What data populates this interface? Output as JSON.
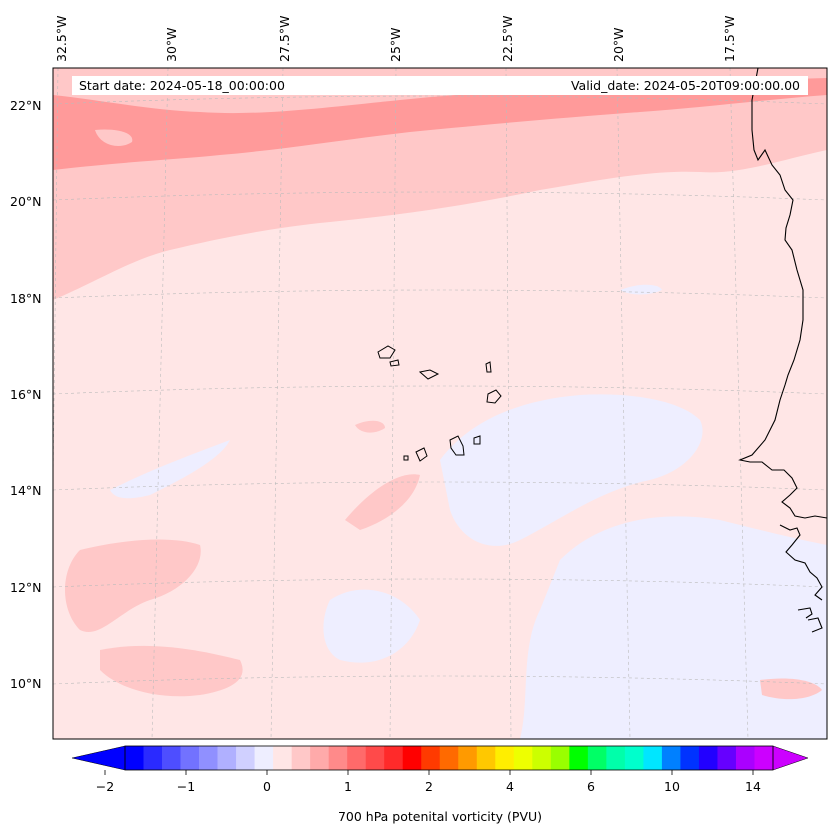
{
  "map": {
    "start_date": "Start date: 2024-05-18_00:00:00",
    "valid_date": "Valid_date: 2024-05-20T09:00:00.00",
    "lon_labels": [
      "32.5°W",
      "30°W",
      "27.5°W",
      "25°W",
      "22.5°W",
      "20°W",
      "17.5°W"
    ],
    "lat_labels": [
      "22°N",
      "20°N",
      "18°N",
      "16°N",
      "14°N",
      "12°N",
      "10°N"
    ],
    "colors": {
      "background_field": "#ffe6e6",
      "light_pink": "#ffc8c8",
      "medium_pink": "#ff9a9a",
      "light_lavender": "#eeeeff",
      "coastline": "#000000"
    }
  },
  "colorbar": {
    "label": "700 hPa potenital vorticity (PVU)",
    "tick_labels": [
      "−2",
      "−1",
      "0",
      "1",
      "2",
      "4",
      "6",
      "10",
      "14"
    ],
    "colors": [
      "#0000ff",
      "#2a2aff",
      "#4e4eff",
      "#7272ff",
      "#9090ff",
      "#b0b0ff",
      "#d0d0ff",
      "#eeeeff",
      "#ffe6e6",
      "#ffc8c8",
      "#ffaaaa",
      "#ff8a8a",
      "#ff6a6a",
      "#ff4a4a",
      "#ff2a2a",
      "#ff0000",
      "#ff3a00",
      "#ff6a00",
      "#ff9a00",
      "#ffc800",
      "#ffee00",
      "#eeff00",
      "#ccff00",
      "#99ff00",
      "#00ff00",
      "#00ff66",
      "#00ffaa",
      "#00ffcc",
      "#00e6ff",
      "#0080ff",
      "#0033ff",
      "#2200ff",
      "#6600ff",
      "#aa00ff",
      "#cc00ff"
    ]
  }
}
